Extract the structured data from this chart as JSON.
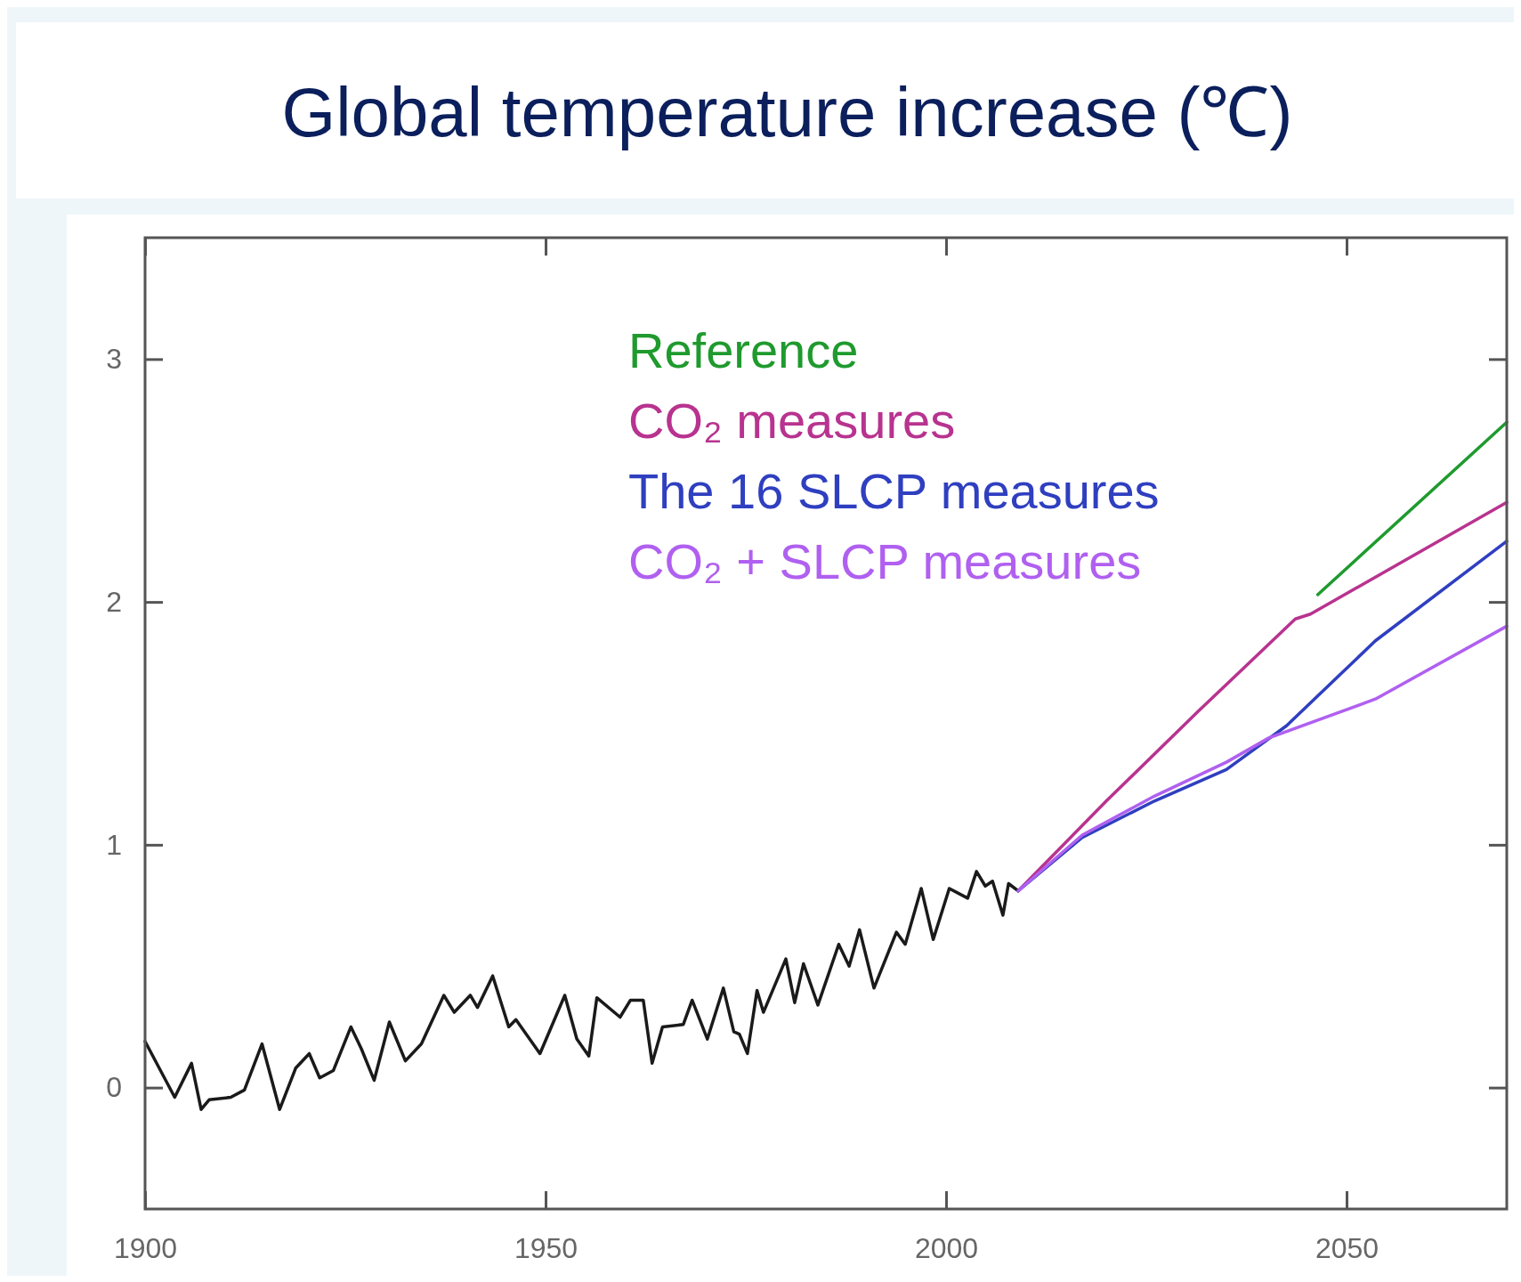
{
  "chart_data": {
    "type": "line",
    "title": "Global temperature increase (℃)",
    "xlim": [
      1900,
      2070
    ],
    "ylim": [
      -0.5,
      3.5
    ],
    "xticks": [
      1900,
      1950,
      2000,
      2050
    ],
    "yticks": [
      0,
      1,
      2,
      3
    ],
    "legend": "top",
    "grid": false,
    "marker": "none",
    "line_style": "solid",
    "series": [
      {
        "color": "#1a1a1a",
        "x": [
          1900,
          1903.7,
          1905.8,
          1907,
          1908,
          1910.7,
          1912.4,
          1914.6,
          1916.8,
          1918.8,
          1920.5,
          1921.8,
          1923.5,
          1925.7,
          1927,
          1928.6,
          1930.5,
          1932.5,
          1934.5,
          1937.3,
          1938.6,
          1940.6,
          1941.5,
          1943.4,
          1945.4,
          1946.3,
          1949.3,
          1952.4,
          1953.9,
          1955.4,
          1956.4,
          1959.3,
          1960.6,
          1962.2,
          1963.3,
          1964.6,
          1967.2,
          1968.3,
          1970.2,
          1972.2,
          1973.5,
          1974.2,
          1975.2,
          1976.4,
          1977.2,
          1980,
          1981.1,
          1982.2,
          1984,
          1986.6,
          1987.9,
          1989.2,
          1991,
          1993.8,
          1994.9,
          1996.9,
          1998.4,
          2000.4,
          2002.7,
          2003.8,
          2004.9,
          2005.8,
          2007.1,
          2007.8,
          2009
        ],
        "values": [
          0.19,
          -0.04,
          0.1,
          -0.09,
          -0.05,
          -0.04,
          -0.01,
          0.18,
          -0.09,
          0.08,
          0.14,
          0.04,
          0.07,
          0.25,
          0.16,
          0.03,
          0.27,
          0.11,
          0.18,
          0.38,
          0.31,
          0.38,
          0.33,
          0.46,
          0.25,
          0.28,
          0.14,
          0.38,
          0.2,
          0.13,
          0.37,
          0.29,
          0.36,
          0.36,
          0.1,
          0.25,
          0.26,
          0.36,
          0.2,
          0.41,
          0.23,
          0.22,
          0.14,
          0.4,
          0.31,
          0.53,
          0.35,
          0.51,
          0.34,
          0.59,
          0.5,
          0.65,
          0.41,
          0.64,
          0.59,
          0.82,
          0.61,
          0.82,
          0.78,
          0.89,
          0.83,
          0.85,
          0.71,
          0.84,
          0.81
        ]
      },
      {
        "name": "Reference",
        "color": "#1f9a2e",
        "x": [
          2046.4,
          2070
        ],
        "values": [
          2.03,
          2.74
        ]
      },
      {
        "name": "CO₂ measures",
        "color": "#b8338f",
        "x": [
          2009,
          2020,
          2031.5,
          2043.6,
          2045.5,
          2070
        ],
        "values": [
          0.81,
          1.18,
          1.55,
          1.93,
          1.95,
          2.41
        ]
      },
      {
        "name": "The 16 SLCP measures",
        "color": "#2f3fc0",
        "x": [
          2009,
          2017,
          2026,
          2035,
          2042.5,
          2053.6,
          2070
        ],
        "values": [
          0.81,
          1.03,
          1.18,
          1.31,
          1.49,
          1.84,
          2.25
        ]
      },
      {
        "name": "CO₂ + SLCP measures",
        "color": "#b060f0",
        "x": [
          2009,
          2017,
          2026,
          2035,
          2040.3,
          2053.6,
          2070
        ],
        "values": [
          0.81,
          1.04,
          1.2,
          1.34,
          1.44,
          1.6,
          1.9
        ]
      }
    ]
  }
}
